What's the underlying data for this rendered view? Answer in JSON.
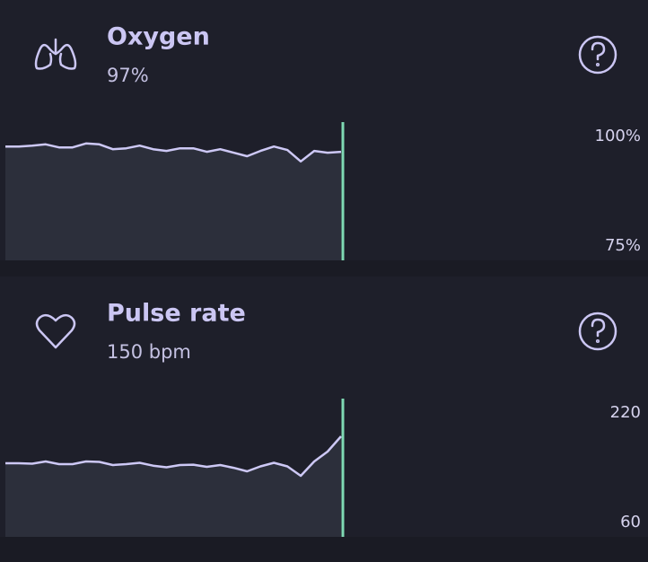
{
  "chart_data": [
    {
      "type": "area",
      "title": "Oxygen",
      "subtitle": "97%",
      "values": [
        97.7,
        97.7,
        97.9,
        98.2,
        97.5,
        97.5,
        98.4,
        98.2,
        97.1,
        97.3,
        97.9,
        97.1,
        96.7,
        97.3,
        97.3,
        96.5,
        97.1,
        96.3,
        95.5,
        96.7,
        97.7,
        96.9,
        94.3,
        96.7,
        96.3,
        96.5
      ],
      "color": "#cdc8f5",
      "ylim": [
        75,
        100
      ],
      "yticks": [
        {
          "value": 100,
          "label": "100%"
        },
        {
          "value": 75,
          "label": "75%"
        }
      ]
    },
    {
      "type": "area",
      "title": "Pulse rate",
      "subtitle": "150 bpm",
      "values": [
        146.6,
        146.6,
        145.9,
        149.2,
        145.2,
        145.2,
        149.2,
        148.5,
        144.0,
        145.2,
        147.2,
        143.0,
        140.6,
        144.0,
        144.5,
        141.3,
        144.0,
        139.9,
        134.7,
        142.0,
        147.2,
        142.0,
        128.2,
        149.2,
        163.6,
        185.9
      ],
      "color": "#cdc8f5",
      "ylim": [
        60,
        220
      ],
      "yticks": [
        220,
        60
      ]
    }
  ]
}
